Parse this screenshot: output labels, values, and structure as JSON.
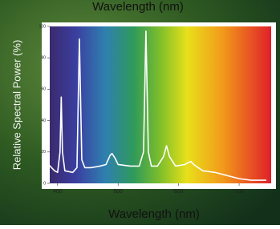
{
  "chart_data": {
    "type": "line",
    "title": "Wavelength (nm)",
    "x_label": "Wavelength (nm)",
    "y_label": "Relative Spectral Power (%)",
    "series": [
      {
        "color": "#ffffff",
        "x": [
          385,
          395,
          400,
          404,
          406,
          408,
          412,
          425,
          432,
          436,
          440,
          445,
          455,
          470,
          480,
          487,
          490,
          495,
          500,
          520,
          535,
          542,
          546,
          550,
          555,
          565,
          575,
          580,
          585,
          595,
          610,
          620,
          625,
          640,
          660,
          680,
          700,
          720,
          735,
          745
        ],
        "values": [
          12,
          8,
          7,
          20,
          55,
          20,
          8,
          7,
          10,
          92,
          15,
          10,
          10,
          11,
          12,
          18,
          19,
          16,
          12,
          11,
          11,
          20,
          97,
          20,
          11,
          11,
          17,
          24,
          17,
          11,
          12,
          14,
          12,
          8,
          7,
          5,
          3,
          2,
          2,
          2
        ]
      }
    ],
    "xlim": [
      387,
      753
    ],
    "xticks": [
      400,
      500,
      600,
      700
    ],
    "ylim": [
      0,
      100
    ],
    "yticks": [
      0,
      20,
      40,
      60,
      80,
      100
    ]
  }
}
